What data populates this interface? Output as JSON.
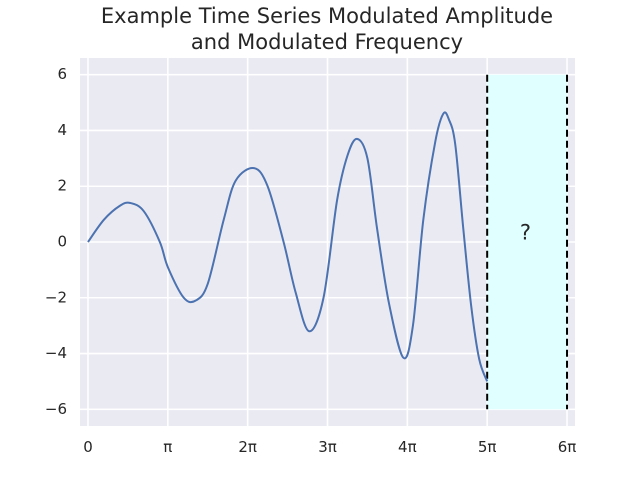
{
  "chart_data": {
    "type": "line",
    "title_lines": [
      "Example Time Series Modulated Amplitude",
      "and Modulated Frequency"
    ],
    "xlabel": "",
    "ylabel": "",
    "xlim": [
      -0.1,
      6.1
    ],
    "ylim": [
      -6.6,
      6.6
    ],
    "x_unit": "π",
    "x_ticks": [
      0,
      1,
      2,
      3,
      4,
      5,
      6
    ],
    "x_tick_labels": [
      "0",
      "π",
      "2π",
      "3π",
      "4π",
      "5π",
      "6π"
    ],
    "y_ticks": [
      -6,
      -4,
      -2,
      0,
      2,
      4,
      6
    ],
    "y_tick_labels": [
      "−6",
      "−4",
      "−2",
      "0",
      "2",
      "4",
      "6"
    ],
    "grid": true,
    "series": [
      {
        "color": "#4c72b0",
        "x": [
          0,
          0.2,
          0.4,
          0.53,
          0.7,
          0.9,
          1.0,
          1.2,
          1.35,
          1.5,
          1.7,
          1.85,
          2.08,
          2.25,
          2.45,
          2.6,
          2.77,
          2.95,
          3.12,
          3.25,
          3.37,
          3.5,
          3.62,
          3.77,
          3.95,
          4.07,
          4.2,
          4.35,
          4.45,
          4.52,
          4.6,
          4.7,
          4.8,
          4.9,
          5.0
        ],
        "values": [
          0,
          0.8,
          1.3,
          1.4,
          1.1,
          0.0,
          -0.9,
          -2.0,
          -2.1,
          -1.5,
          0.8,
          2.2,
          2.65,
          2.0,
          0.0,
          -1.8,
          -3.2,
          -2.0,
          1.5,
          3.1,
          3.7,
          3.0,
          0.5,
          -2.2,
          -4.15,
          -3.0,
          0.8,
          3.6,
          4.6,
          4.4,
          3.5,
          0.5,
          -2.3,
          -4.2,
          -5.0
        ]
      }
    ],
    "forecast_region": {
      "x_range": [
        5,
        6
      ],
      "y_range": [
        -6,
        6
      ],
      "fill_color": "#e0ffff",
      "border_color": "#000000",
      "label": "?",
      "label_position": [
        5.48,
        0.3
      ]
    },
    "background_color": "#eaeaf2",
    "grid_color": "#ffffff"
  }
}
